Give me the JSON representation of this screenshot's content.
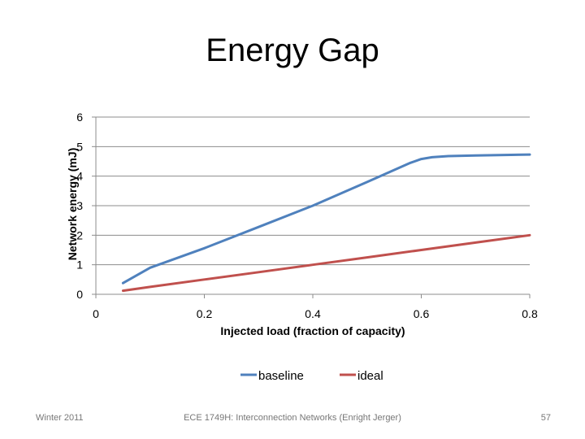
{
  "slide": {
    "title": "Energy Gap",
    "footer_left": "Winter 2011",
    "footer_center": "ECE 1749H: Interconnection Networks (Enright Jerger)",
    "footer_right": "57"
  },
  "chart_data": {
    "type": "line",
    "title": "Energy Gap",
    "xlabel": "Injected load (fraction of capacity)",
    "ylabel": "Network energy (mJ)",
    "xlim": [
      0,
      0.8
    ],
    "ylim": [
      0,
      6
    ],
    "xticks": [
      0,
      0.2,
      0.4,
      0.6,
      0.8
    ],
    "xtick_labels": [
      "0",
      "0.2",
      "0.4",
      "0.6",
      "0.8"
    ],
    "yticks": [
      0,
      1,
      2,
      3,
      4,
      5,
      6
    ],
    "ytick_labels": [
      "0",
      "1",
      "2",
      "3",
      "4",
      "5",
      "6"
    ],
    "grid": "horizontal",
    "legend_position": "bottom",
    "series": [
      {
        "name": "baseline",
        "color": "#4f81bd",
        "x": [
          0.05,
          0.1,
          0.2,
          0.3,
          0.4,
          0.5,
          0.58,
          0.6,
          0.62,
          0.65,
          0.7,
          0.8
        ],
        "y": [
          0.38,
          0.9,
          1.56,
          2.28,
          3.0,
          3.8,
          4.45,
          4.58,
          4.64,
          4.68,
          4.7,
          4.73
        ]
      },
      {
        "name": "ideal",
        "color": "#c0504d",
        "x": [
          0.05,
          0.1,
          0.2,
          0.3,
          0.4,
          0.5,
          0.6,
          0.7,
          0.8
        ],
        "y": [
          0.12,
          0.25,
          0.5,
          0.75,
          1.0,
          1.25,
          1.5,
          1.75,
          2.0
        ]
      }
    ]
  }
}
